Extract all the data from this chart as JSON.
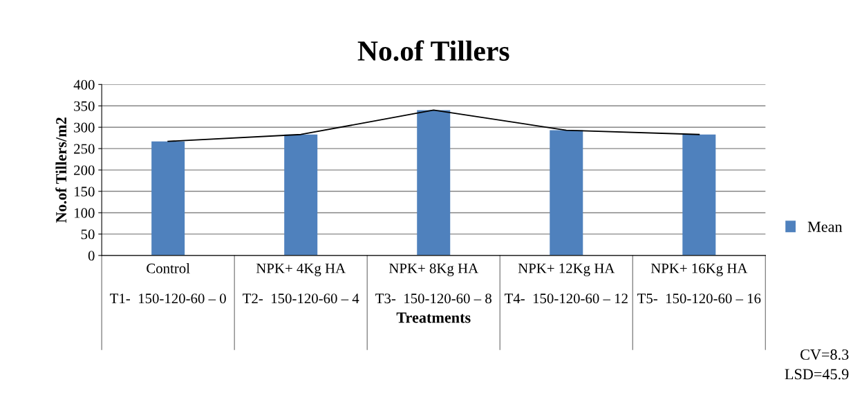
{
  "chart_data": {
    "type": "bar",
    "title": "No.of Tillers",
    "xlabel": "Treatments",
    "ylabel": "No.of Tillers/m2",
    "categories": [
      "Control\n\nT1-  150-120-60 – 0",
      "NPK+ 4Kg HA\n\nT2-  150-120-60 – 4",
      "NPK+ 8Kg HA\n\nT3-  150-120-60 – 8",
      "NPK+ 12Kg HA\n\nT4-  150-120-60 – 12",
      "NPK+ 16Kg HA\n\nT5-  150-120-60 – 16"
    ],
    "series": [
      {
        "name": "Mean",
        "color": "#4f81bd",
        "values": [
          267,
          283,
          340,
          293,
          283
        ]
      },
      {
        "type": "line",
        "color": "#000000",
        "values": [
          267,
          283,
          340,
          293,
          283
        ]
      }
    ],
    "ylim": [
      0,
      400
    ],
    "yticks": [
      0,
      50,
      100,
      150,
      200,
      250,
      300,
      350,
      400
    ],
    "grid": "y",
    "legend": "right",
    "marker": "none",
    "annotations": [
      "CV=8.3",
      "LSD=45.9"
    ]
  }
}
